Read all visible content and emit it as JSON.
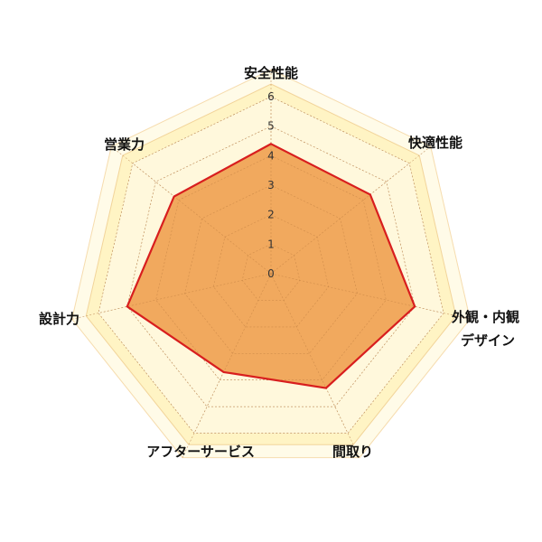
{
  "chart_data": {
    "type": "radar",
    "title": "",
    "axes": [
      "安全性能",
      "快適性能",
      "外観・内観デザイン",
      "間取り",
      "アフターサービス",
      "設計力",
      "営業力"
    ],
    "axis_label_lines": [
      [
        "安全性能"
      ],
      [
        "快適性能"
      ],
      [
        "外観・内観",
        "デザイン"
      ],
      [
        "間取り"
      ],
      [
        "アフターサービス"
      ],
      [
        "設計力"
      ],
      [
        "営業力"
      ]
    ],
    "series": [
      {
        "values": [
          4.4,
          4.3,
          5.0,
          4.3,
          3.7,
          5.0,
          4.2
        ]
      }
    ],
    "rlim": [
      0,
      6
    ],
    "ticks": [
      "0",
      "1",
      "2",
      "3",
      "4",
      "5",
      "6"
    ],
    "grid": true,
    "colors": {
      "fill": "#f0a050",
      "line": "#d81e1e",
      "ring_inner": "#fff4c4",
      "ring_outer": "#fffbe8",
      "grid": "#c89a6a"
    }
  }
}
